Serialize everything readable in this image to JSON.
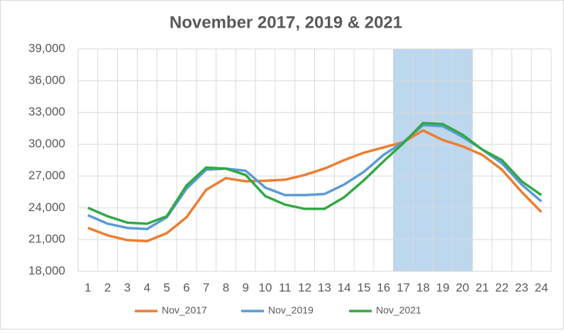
{
  "chart_data": {
    "type": "line",
    "title": "November 2017, 2019 & 2021",
    "categories": [
      "1",
      "2",
      "3",
      "4",
      "5",
      "6",
      "7",
      "8",
      "9",
      "10",
      "11",
      "12",
      "13",
      "14",
      "15",
      "16",
      "17",
      "18",
      "19",
      "20",
      "21",
      "22",
      "23",
      "24"
    ],
    "series": [
      {
        "name": "Nov_2017",
        "color": "#ed7d31",
        "values": [
          22100,
          21400,
          20950,
          20850,
          21600,
          23100,
          25700,
          26800,
          26500,
          26550,
          26650,
          27100,
          27700,
          28500,
          29200,
          29700,
          30200,
          31300,
          30400,
          29800,
          29000,
          27600,
          25500,
          23600
        ]
      },
      {
        "name": "Nov_2019",
        "color": "#5b9bd5",
        "values": [
          23300,
          22500,
          22100,
          22000,
          23100,
          25800,
          27600,
          27700,
          27500,
          25900,
          25200,
          25200,
          25300,
          26200,
          27400,
          29000,
          30200,
          31800,
          31700,
          30700,
          29500,
          28200,
          26200,
          24600
        ]
      },
      {
        "name": "Nov_2021",
        "color": "#33a846",
        "values": [
          24000,
          23200,
          22600,
          22500,
          23200,
          26100,
          27800,
          27700,
          27100,
          25100,
          24300,
          23900,
          23900,
          25000,
          26600,
          28400,
          30100,
          32000,
          31900,
          30900,
          29500,
          28500,
          26500,
          25200
        ]
      }
    ],
    "ylim": [
      18000,
      39000
    ],
    "yticks": [
      {
        "value": 18000,
        "label": "18,000"
      },
      {
        "value": 21000,
        "label": "21,000"
      },
      {
        "value": 24000,
        "label": "24,000"
      },
      {
        "value": 27000,
        "label": "27,000"
      },
      {
        "value": 30000,
        "label": "30,000"
      },
      {
        "value": 33000,
        "label": "33,000"
      },
      {
        "value": 36000,
        "label": "36,000"
      },
      {
        "value": 39000,
        "label": "39,000"
      }
    ],
    "grid": true,
    "highlight": [
      "17",
      "20"
    ],
    "highlight_color": "#bdd7ee",
    "legend": "bottom"
  }
}
